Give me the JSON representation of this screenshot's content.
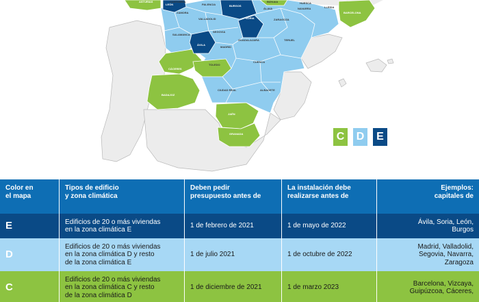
{
  "map": {
    "provinces": [
      {
        "name": "ASTURIAS",
        "zone": "C"
      },
      {
        "name": "CANTABRIA",
        "zone": "D"
      },
      {
        "name": "BIZKAIA",
        "zone": "C"
      },
      {
        "name": "LEÓN",
        "zone": "E"
      },
      {
        "name": "PALENCIA",
        "zone": "D"
      },
      {
        "name": "BURGOS",
        "zone": "E"
      },
      {
        "name": "ÁLAVA",
        "zone": "D"
      },
      {
        "name": "NAVARRA",
        "zone": "D"
      },
      {
        "name": "HUESCA",
        "zone": "D"
      },
      {
        "name": "LLEIDA",
        "zone": "D"
      },
      {
        "name": "ZAMORA",
        "zone": "D"
      },
      {
        "name": "VALLADOLID",
        "zone": "D"
      },
      {
        "name": "SORIA",
        "zone": "E"
      },
      {
        "name": "ZARAGOZA",
        "zone": "D"
      },
      {
        "name": "BARCELONA",
        "zone": "C"
      },
      {
        "name": "SALAMANCA",
        "zone": "D"
      },
      {
        "name": "SEGOVIA",
        "zone": "D"
      },
      {
        "name": "GUADALAJARA",
        "zone": "D"
      },
      {
        "name": "TERUEL",
        "zone": "D"
      },
      {
        "name": "ÁVILA",
        "zone": "E"
      },
      {
        "name": "MADRID",
        "zone": "D"
      },
      {
        "name": "CUENCA",
        "zone": "D"
      },
      {
        "name": "CÁCERES",
        "zone": "C"
      },
      {
        "name": "TOLEDO",
        "zone": "C"
      },
      {
        "name": "BADAJOZ",
        "zone": "C"
      },
      {
        "name": "CIUDAD REAL",
        "zone": "D"
      },
      {
        "name": "ALBACETE",
        "zone": "D"
      },
      {
        "name": "JAÉN",
        "zone": "C"
      },
      {
        "name": "GRANADA",
        "zone": "C"
      }
    ],
    "legend": [
      {
        "letter": "C",
        "color": "#8dc341"
      },
      {
        "letter": "D",
        "color": "#8fccef"
      },
      {
        "letter": "E",
        "color": "#0a4a86"
      }
    ]
  },
  "colors": {
    "zone_C": "#8dc341",
    "zone_D": "#8fccef",
    "zone_E": "#0a4a86",
    "header": "#0e6eb4",
    "sea": "#ffffff",
    "land_other": "#ececec"
  },
  "table": {
    "headers": [
      "Color en\nel mapa",
      "Tipos de edificio\ny zona climática",
      "Deben pedir\npresupuesto antes de",
      "La instalación debe\nrealizarse antes de",
      "Ejemplos:\ncapitales de"
    ],
    "rows": [
      {
        "zone": "E",
        "type": "Edificios de 20 o más viviendas\nen la zona climática E",
        "budget_by": "1 de febrero de 2021",
        "install_by": "1 de mayo de 2022",
        "examples": "Ávila, Soria, León,\nBurgos"
      },
      {
        "zone": "D",
        "type": "Edificios de 20 o más viviendas\nen la zona climática D y resto\nde la zona climática E",
        "budget_by": "1 de julio 2021",
        "install_by": "1 de octubre de 2022",
        "examples": "Madrid, Valladolid,\nSegovia, Navarra,\nZaragoza"
      },
      {
        "zone": "C",
        "type": "Edificios de 20 o más viviendas\nen la zona climática C y resto\nde la zona climática D",
        "budget_by": "1 de diciembre de 2021",
        "install_by": "1 de marzo 2023",
        "examples": "Barcelona, Vizcaya,\nGuipúzcoa, Cáceres,"
      }
    ]
  }
}
